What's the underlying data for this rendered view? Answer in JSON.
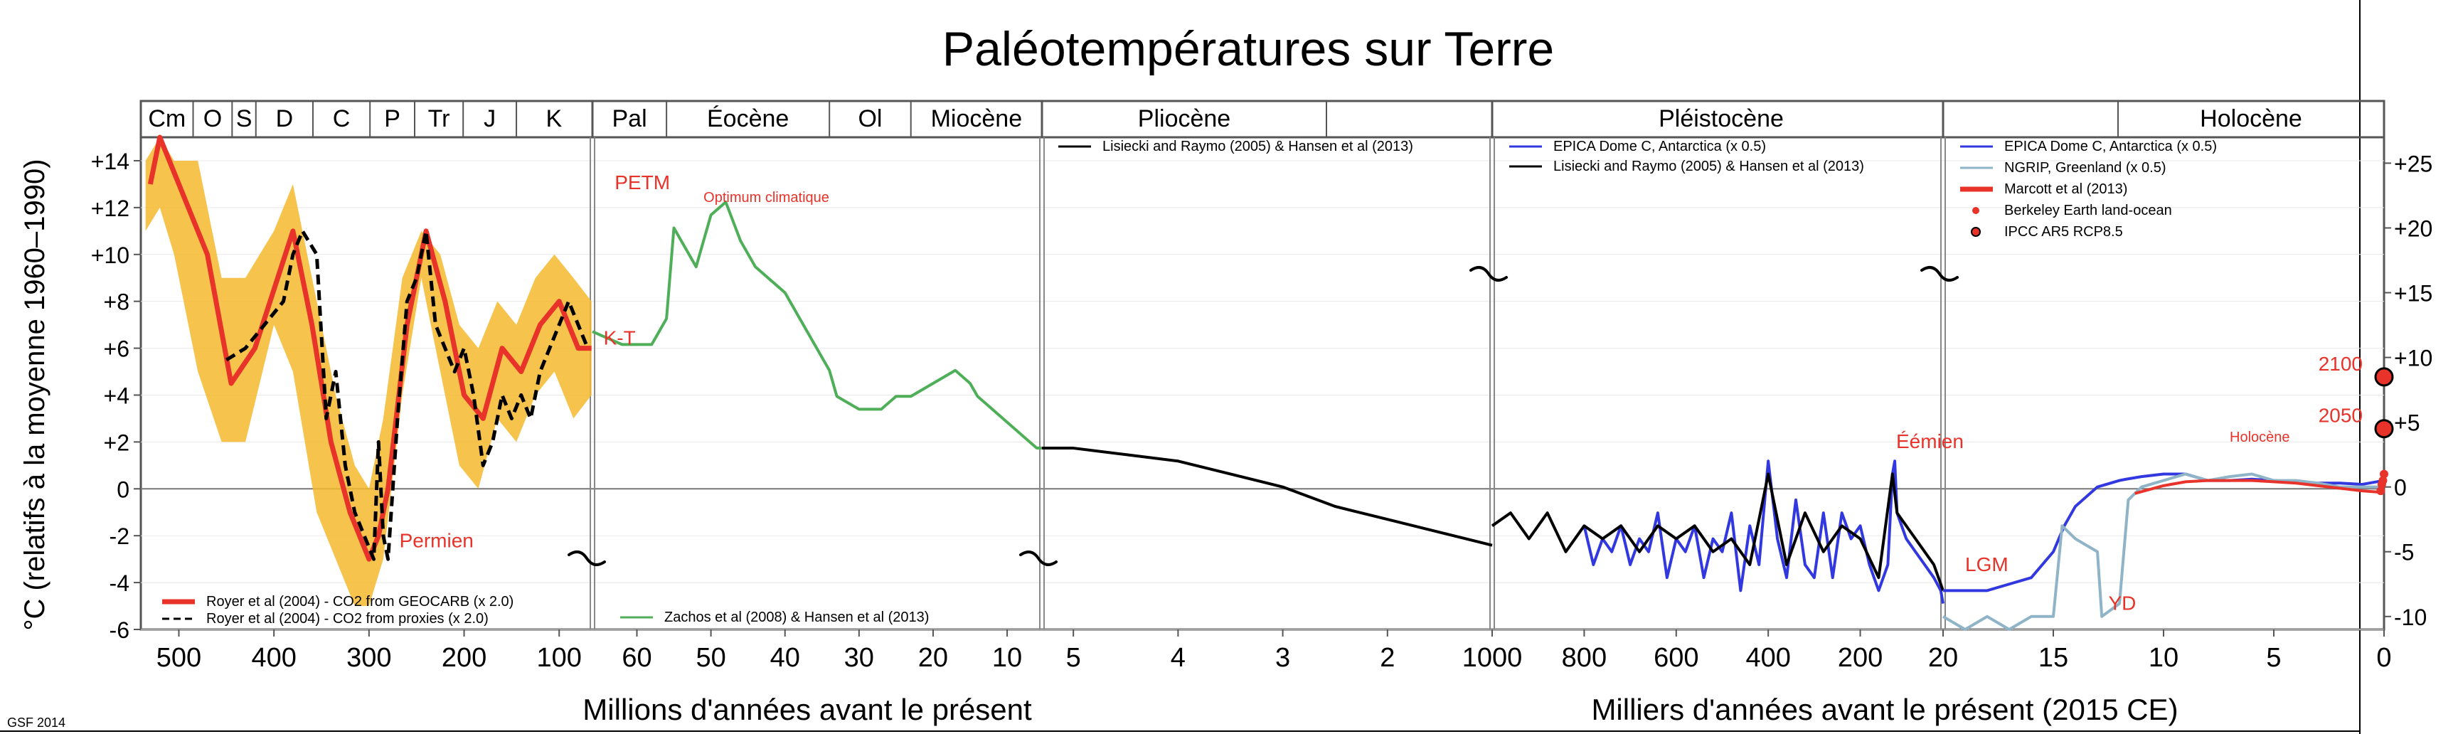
{
  "chart_data": {
    "type": "line",
    "title": "Paléotempératures sur Terre",
    "credit": "GSF 2014",
    "ylabel_left": "°C (relatifs à la moyenne 1960–1990)",
    "left_axis": {
      "range": [
        -6,
        15
      ],
      "ticks": [
        "-6",
        "-4",
        "-2",
        "0",
        "+2",
        "+4",
        "+6",
        "+8",
        "+10",
        "+12",
        "+14"
      ]
    },
    "right_axis": {
      "range": [
        -11,
        27
      ],
      "ticks": [
        "-10",
        "-5",
        "0",
        "+5",
        "+10",
        "+15",
        "+20",
        "+25"
      ]
    },
    "xlabel_mya": "Millions d'années avant le présent",
    "xlabel_kya": "Milliers d'années avant le présent (2015 CE)",
    "panels": [
      {
        "id": "phanerozoic",
        "x_range": [
          540,
          65
        ],
        "x_ticks": [
          "500",
          "400",
          "300",
          "200",
          "100"
        ],
        "periods": [
          "Cm",
          "O",
          "S",
          "D",
          "C",
          "P",
          "Tr",
          "J",
          "K"
        ],
        "period_bounds": [
          541,
          485,
          444,
          419,
          359,
          299,
          252,
          201,
          145,
          66
        ],
        "series": [
          {
            "name": "Royer et al (2004) - CO2 from GEOCARB (x 2.0)",
            "color": "#e8332a",
            "x": [
              530,
              520,
              500,
              470,
              445,
              420,
              380,
              360,
              340,
              320,
              300,
              290,
              280,
              260,
              240,
              220,
              200,
              180,
              160,
              140,
              120,
              100,
              80,
              66
            ],
            "y": [
              13,
              15,
              13,
              10,
              4.5,
              6,
              11,
              7,
              2,
              -1,
              -3,
              -2,
              0,
              7,
              11,
              8,
              4,
              3,
              6,
              5,
              7,
              8,
              6,
              6
            ]
          },
          {
            "name": "Royer et al (2004) - CO2 from proxies (x 2.0)",
            "color": "#000000",
            "dash": true,
            "x": [
              450,
              430,
              410,
              390,
              380,
              370,
              355,
              345,
              335,
              325,
              315,
              305,
              295,
              290,
              285,
              280,
              270,
              260,
              250,
              240,
              230,
              220,
              210,
              200,
              190,
              180,
              170,
              160,
              150,
              140,
              130,
              120,
              110,
              100,
              90,
              80,
              70
            ],
            "y": [
              5.5,
              6,
              7,
              8,
              10,
              11,
              10,
              3,
              5,
              1,
              -1,
              -2,
              -3,
              2,
              -2,
              -3,
              3,
              8,
              9,
              11,
              7,
              6,
              5,
              6,
              4,
              1,
              2,
              4,
              3,
              4,
              3,
              5,
              6,
              7,
              8,
              7,
              6
            ]
          }
        ],
        "uncertainty": {
          "color": "#f5b82e",
          "x": [
            535,
            520,
            505,
            480,
            455,
            430,
            400,
            380,
            355,
            335,
            315,
            300,
            285,
            265,
            245,
            225,
            205,
            185,
            165,
            145,
            125,
            105,
            85,
            66
          ],
          "upper": [
            14,
            15,
            14,
            14,
            9,
            9,
            11,
            13,
            8,
            4,
            1,
            0,
            3,
            9,
            11,
            10,
            7,
            6,
            8,
            7,
            9,
            10,
            9,
            8
          ],
          "lower": [
            11,
            12,
            10,
            5,
            2,
            2,
            7,
            5,
            -1,
            -3,
            -5,
            -5,
            -3,
            4,
            9,
            5,
            1,
            0,
            3,
            2,
            4,
            5,
            3,
            4
          ]
        },
        "annotations": [
          {
            "text": "Permien",
            "x": 268,
            "y": -2.5
          }
        ]
      },
      {
        "id": "cenozoic",
        "x_range": [
          66,
          5.3
        ],
        "x_ticks": [
          "60",
          "50",
          "40",
          "30",
          "20",
          "10"
        ],
        "epochs": [
          "Pal",
          "Éocène",
          "Ol",
          "Miocène"
        ],
        "epoch_bounds": [
          66,
          56,
          34,
          23,
          5.3
        ],
        "series": [
          {
            "name": "Zachos et al (2008) & Hansen et al (2013)",
            "color": "#4fae58",
            "x": [
              66,
              62,
              58,
              56,
              55,
              52,
              50,
              48,
              46,
              44,
              42,
              40,
              38,
              36,
              34,
              33,
              30,
              27,
              25,
              23,
              20,
              17,
              15,
              14,
              12,
              10,
              8,
              6,
              5.3
            ],
            "y": [
              12,
              11,
              11,
              13,
              20,
              17,
              21,
              22,
              19,
              17,
              16,
              15,
              13,
              11,
              9,
              7,
              6,
              6,
              7,
              7,
              8,
              9,
              8,
              7,
              6,
              5,
              4,
              3,
              3
            ]
          }
        ],
        "annotations": [
          {
            "text": "PETM",
            "x": 63,
            "y": 23
          },
          {
            "text": "Optimum climatique",
            "x": 51,
            "y": 22
          },
          {
            "text": "K-T",
            "x": 64.5,
            "y": 11
          }
        ]
      },
      {
        "id": "pliocene",
        "x_range": [
          5.3,
          1.0
        ],
        "x_ticks": [
          "5",
          "4",
          "3",
          "2",
          "1000"
        ],
        "epochs": [
          "Pliocène",
          "Pléistocène"
        ],
        "series": [
          {
            "name": "Lisiecki and Raymo (2005) & Hansen et al (2013)",
            "color": "#000000",
            "x": [
              5.3,
              5.0,
              4.5,
              4.0,
              3.5,
              3.0,
              2.5,
              2.0,
              1.5,
              1.0
            ],
            "y": [
              3,
              3,
              2.5,
              2,
              1,
              0,
              -1.5,
              -2.5,
              -3.5,
              -4.5
            ]
          }
        ]
      },
      {
        "id": "pleistocene",
        "x_range": [
          1000,
          20
        ],
        "x_ticks": [
          "800",
          "600",
          "400",
          "200",
          "20"
        ],
        "series": [
          {
            "name": "EPICA Dome C, Antarctica (x 0.5)",
            "color": "#3238e0",
            "x": [
              800,
              780,
              760,
              740,
              720,
              700,
              680,
              660,
              640,
              620,
              600,
              580,
              560,
              540,
              520,
              500,
              480,
              460,
              440,
              420,
              400,
              380,
              360,
              340,
              320,
              300,
              280,
              260,
              240,
              220,
              200,
              180,
              160,
              140,
              130,
              125,
              120,
              100,
              80,
              60,
              40,
              25,
              20
            ],
            "y": [
              -3,
              -6,
              -4,
              -5,
              -3,
              -6,
              -4,
              -5,
              -2,
              -7,
              -4,
              -5,
              -3,
              -7,
              -4,
              -5,
              -2,
              -8,
              -3,
              -6,
              2,
              -4,
              -7,
              -1,
              -6,
              -7,
              -2,
              -7,
              -2,
              -4,
              -3,
              -6,
              -8,
              -6,
              1,
              2,
              -2,
              -4,
              -5,
              -6,
              -7,
              -8,
              -9
            ]
          },
          {
            "name": "Lisiecki and Raymo (2005) & Hansen et al (2013)",
            "color": "#000000",
            "x": [
              1000,
              960,
              920,
              880,
              840,
              800,
              760,
              720,
              680,
              640,
              600,
              560,
              520,
              480,
              440,
              400,
              360,
              320,
              280,
              240,
              200,
              160,
              130,
              120,
              80,
              40,
              20
            ],
            "y": [
              -3,
              -2,
              -4,
              -2,
              -5,
              -3,
              -4,
              -3,
              -5,
              -3,
              -4,
              -3,
              -5,
              -4,
              -6,
              1,
              -6,
              -2,
              -5,
              -3,
              -4,
              -7,
              1,
              -2,
              -4,
              -6,
              -8
            ]
          }
        ],
        "annotations": [
          {
            "text": "Éémien",
            "x": 122,
            "y": 3
          }
        ]
      },
      {
        "id": "holocene",
        "x_range": [
          20,
          0
        ],
        "x_ticks": [
          "20",
          "15",
          "10",
          "5",
          "0"
        ],
        "epochs": [
          "Holocène"
        ],
        "series": [
          {
            "name": "EPICA Dome C, Antarctica (x 0.5)",
            "color": "#3238e0",
            "x": [
              20,
              19,
              18,
              17,
              16,
              15,
              14.5,
              14,
              13,
              12,
              11.7,
              11,
              10,
              9,
              8,
              7,
              6,
              5,
              4,
              3,
              2,
              1,
              0
            ],
            "y": [
              -8,
              -8,
              -8,
              -7.5,
              -7,
              -5,
              -3,
              -1.5,
              0,
              0.5,
              0.6,
              0.8,
              1,
              1,
              0.5,
              0.5,
              0.6,
              0.5,
              0.4,
              0.3,
              0.3,
              0.2,
              0.5
            ]
          },
          {
            "name": "NGRIP, Greenland (x 0.5)",
            "color": "#8fb4c8",
            "x": [
              20,
              19,
              18,
              17,
              16,
              15,
              14.6,
              14,
              13,
              12.8,
              12,
              11.6,
              11,
              10,
              9,
              8,
              7,
              6,
              5,
              4,
              3,
              2,
              1,
              0
            ],
            "y": [
              -10,
              -11,
              -10,
              -11,
              -10,
              -10,
              -3,
              -4,
              -5,
              -10,
              -9,
              -1,
              0,
              0.5,
              1,
              0.5,
              0.8,
              1,
              0.5,
              0.5,
              0.3,
              0,
              0,
              0
            ]
          },
          {
            "name": "Marcott et al (2013)",
            "color": "#e8332a",
            "x": [
              11.3,
              10,
              9,
              8,
              7,
              6,
              5,
              4,
              3,
              2,
              1,
              0.2
            ],
            "y": [
              -0.5,
              0.1,
              0.4,
              0.5,
              0.5,
              0.5,
              0.4,
              0.3,
              0.1,
              -0.1,
              -0.3,
              -0.4
            ]
          },
          {
            "name": "Berkeley Earth land-ocean",
            "color": "#e8332a",
            "marker": "dot",
            "x": [
              0.15,
              0.1,
              0.05,
              0
            ],
            "y": [
              -0.3,
              0.2,
              0.5,
              1
            ]
          },
          {
            "name": "IPCC AR5 RCP8.5",
            "color": "#e8332a",
            "marker": "ringed-dot",
            "x": [
              0,
              0
            ],
            "y": [
              4.5,
              8.5
            ]
          }
        ],
        "annotations": [
          {
            "text": "LGM",
            "x": 19,
            "y": -6.5
          },
          {
            "text": "YD",
            "x": 12.5,
            "y": -9.5
          },
          {
            "text": "Holocène",
            "x": 7,
            "y": 3.5
          },
          {
            "text": "2050",
            "x": 1,
            "y": 5
          },
          {
            "text": "2100",
            "x": 1,
            "y": 9
          }
        ]
      }
    ]
  }
}
